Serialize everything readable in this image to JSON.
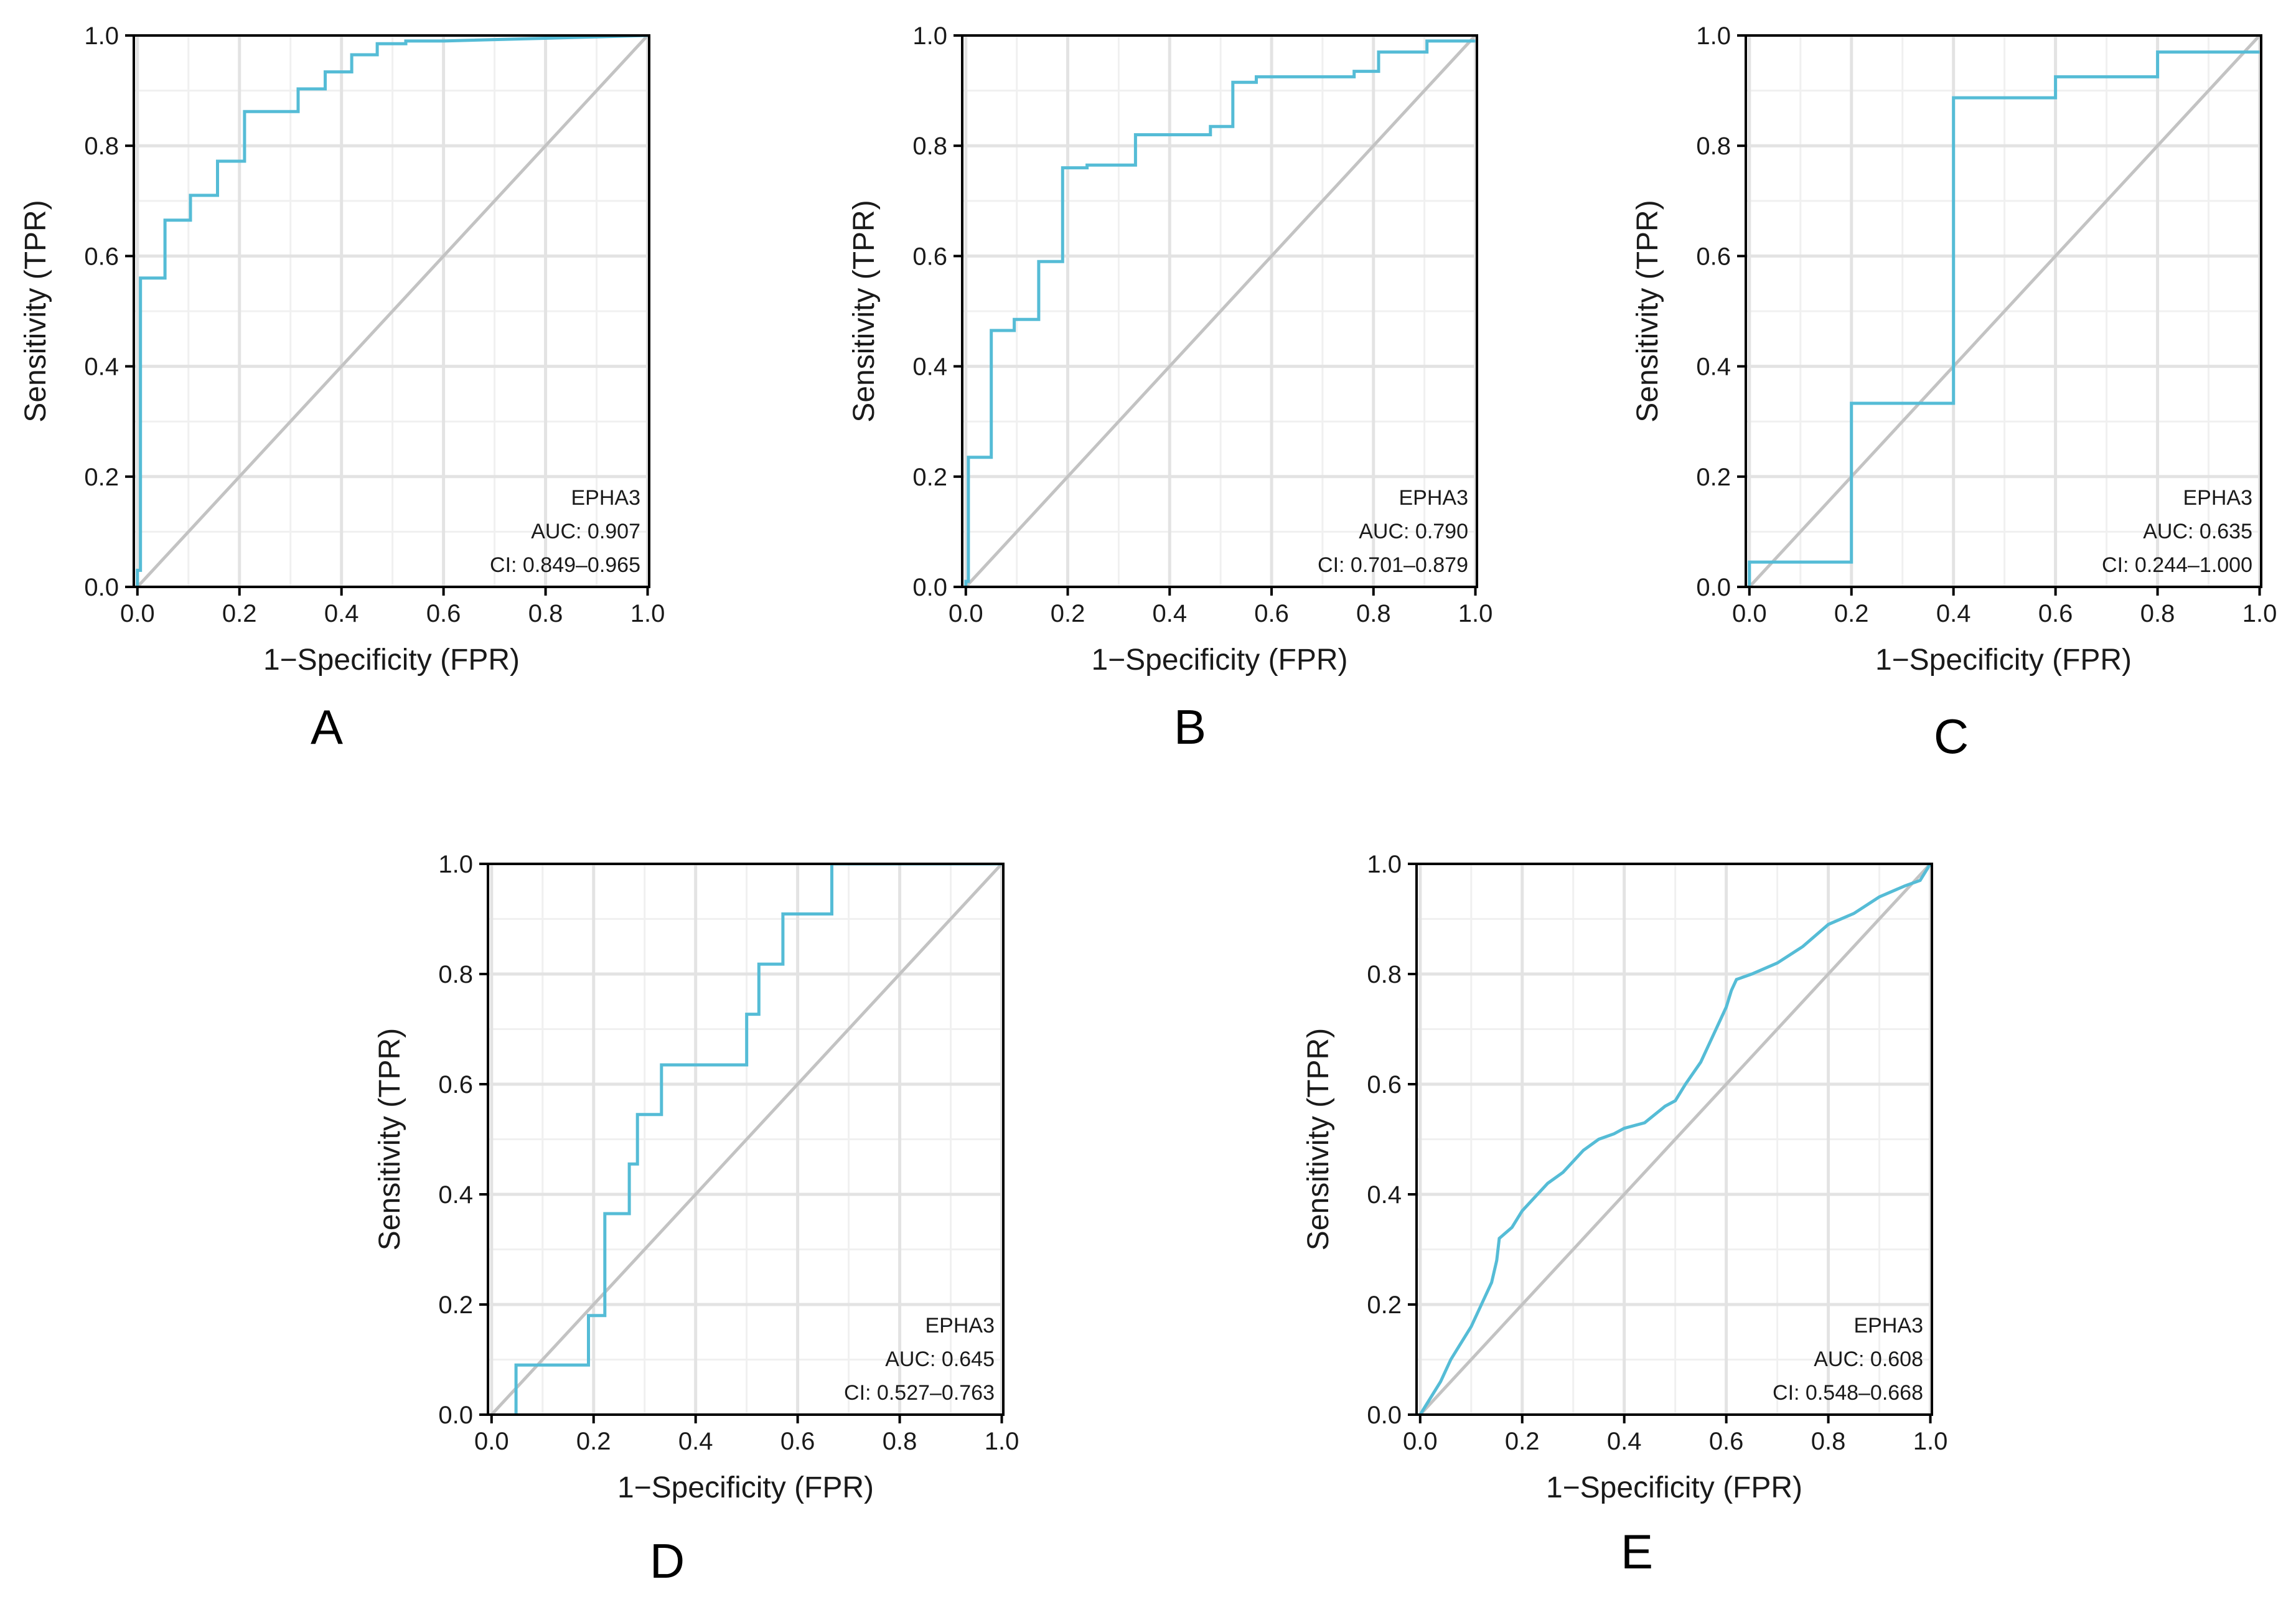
{
  "chart_data": [
    {
      "type": "line",
      "panel_label": "A",
      "xlabel": "1−Specificity (FPR)",
      "ylabel": "Sensitivity (TPR)",
      "xlim": [
        0,
        1
      ],
      "ylim": [
        0,
        1
      ],
      "x_ticks": [
        "0.0",
        "0.2",
        "0.4",
        "0.6",
        "0.8",
        "1.0"
      ],
      "y_ticks": [
        "0.0",
        "0.2",
        "0.4",
        "0.6",
        "0.8",
        "1.0"
      ],
      "grid": true,
      "annotation": [
        "EPHA3",
        "AUC: 0.907",
        "CI: 0.849–0.965"
      ],
      "series": [
        {
          "name": "EPHA3",
          "x": [
            0,
            0,
            0.006,
            0.006,
            0.054,
            0.054,
            0.104,
            0.104,
            0.157,
            0.157,
            0.21,
            0.21,
            0.315,
            0.315,
            0.368,
            0.368,
            0.42,
            0.42,
            0.47,
            0.47,
            0.526,
            0.526,
            0.6,
            1.0
          ],
          "y": [
            0,
            0.03,
            0.03,
            0.56,
            0.56,
            0.665,
            0.665,
            0.71,
            0.71,
            0.772,
            0.772,
            0.862,
            0.862,
            0.903,
            0.903,
            0.934,
            0.934,
            0.965,
            0.965,
            0.985,
            0.985,
            0.99,
            0.99,
            1.0
          ]
        },
        {
          "name": "reference",
          "x": [
            0,
            1
          ],
          "y": [
            0,
            1
          ]
        }
      ]
    },
    {
      "type": "line",
      "panel_label": "B",
      "xlabel": "1−Specificity (FPR)",
      "ylabel": "Sensitivity (TPR)",
      "xlim": [
        0,
        1
      ],
      "ylim": [
        0,
        1
      ],
      "x_ticks": [
        "0.0",
        "0.2",
        "0.4",
        "0.6",
        "0.8",
        "1.0"
      ],
      "y_ticks": [
        "0.0",
        "0.2",
        "0.4",
        "0.6",
        "0.8",
        "1.0"
      ],
      "grid": true,
      "annotation": [
        "EPHA3",
        "AUC: 0.790",
        "CI: 0.701–0.879"
      ],
      "series": [
        {
          "name": "EPHA3",
          "x": [
            0,
            0,
            0.005,
            0.005,
            0.05,
            0.05,
            0.095,
            0.095,
            0.143,
            0.143,
            0.19,
            0.19,
            0.238,
            0.238,
            0.333,
            0.333,
            0.48,
            0.48,
            0.524,
            0.524,
            0.57,
            0.57,
            0.762,
            0.762,
            0.81,
            0.81,
            0.905,
            0.905,
            1.0
          ],
          "y": [
            0,
            0.01,
            0.01,
            0.235,
            0.235,
            0.465,
            0.465,
            0.485,
            0.485,
            0.59,
            0.59,
            0.76,
            0.76,
            0.765,
            0.765,
            0.82,
            0.82,
            0.835,
            0.835,
            0.915,
            0.915,
            0.925,
            0.925,
            0.935,
            0.935,
            0.97,
            0.97,
            0.99,
            0.99
          ]
        },
        {
          "name": "reference",
          "x": [
            0,
            1
          ],
          "y": [
            0,
            1
          ]
        }
      ]
    },
    {
      "type": "line",
      "panel_label": "C",
      "xlabel": "1−Specificity (FPR)",
      "ylabel": "Sensitivity (TPR)",
      "xlim": [
        0,
        1
      ],
      "ylim": [
        0,
        1
      ],
      "x_ticks": [
        "0.0",
        "0.2",
        "0.4",
        "0.6",
        "0.8",
        "1.0"
      ],
      "y_ticks": [
        "0.0",
        "0.2",
        "0.4",
        "0.6",
        "0.8",
        "1.0"
      ],
      "grid": true,
      "annotation": [
        "EPHA3",
        "AUC: 0.635",
        "CI: 0.244–1.000"
      ],
      "series": [
        {
          "name": "EPHA3",
          "x": [
            0,
            0,
            0.2,
            0.2,
            0.4,
            0.4,
            0.6,
            0.6,
            0.8,
            0.8,
            1.0
          ],
          "y": [
            0,
            0.045,
            0.045,
            0.333,
            0.333,
            0.887,
            0.887,
            0.925,
            0.925,
            0.97,
            0.97
          ]
        },
        {
          "name": "reference",
          "x": [
            0,
            1
          ],
          "y": [
            0,
            1
          ]
        }
      ]
    },
    {
      "type": "line",
      "panel_label": "D",
      "xlabel": "1−Specificity (FPR)",
      "ylabel": "Sensitivity (TPR)",
      "xlim": [
        0,
        1
      ],
      "ylim": [
        0,
        1
      ],
      "x_ticks": [
        "0.0",
        "0.2",
        "0.4",
        "0.6",
        "0.8",
        "1.0"
      ],
      "y_ticks": [
        "0.0",
        "0.2",
        "0.4",
        "0.6",
        "0.8",
        "1.0"
      ],
      "grid": true,
      "annotation": [
        "EPHA3",
        "AUC: 0.645",
        "CI: 0.527–0.763"
      ],
      "series": [
        {
          "name": "EPHA3",
          "x": [
            0.048,
            0.048,
            0.19,
            0.19,
            0.222,
            0.222,
            0.27,
            0.27,
            0.286,
            0.286,
            0.333,
            0.333,
            0.5,
            0.5,
            0.524,
            0.524,
            0.571,
            0.571,
            0.667,
            0.667,
            1.0
          ],
          "y": [
            0,
            0.09,
            0.09,
            0.18,
            0.18,
            0.365,
            0.365,
            0.455,
            0.455,
            0.545,
            0.545,
            0.635,
            0.635,
            0.727,
            0.727,
            0.818,
            0.818,
            0.909,
            0.909,
            1.0,
            1.0
          ]
        },
        {
          "name": "reference",
          "x": [
            0,
            1
          ],
          "y": [
            0,
            1
          ]
        }
      ]
    },
    {
      "type": "line",
      "panel_label": "E",
      "xlabel": "1−Specificity (FPR)",
      "ylabel": "Sensitivity (TPR)",
      "xlim": [
        0,
        1
      ],
      "ylim": [
        0,
        1
      ],
      "x_ticks": [
        "0.0",
        "0.2",
        "0.4",
        "0.6",
        "0.8",
        "1.0"
      ],
      "y_ticks": [
        "0.0",
        "0.2",
        "0.4",
        "0.6",
        "0.8",
        "1.0"
      ],
      "grid": true,
      "annotation": [
        "EPHA3",
        "AUC: 0.608",
        "CI: 0.548–0.668"
      ],
      "series": [
        {
          "name": "EPHA3",
          "x": [
            0,
            0.02,
            0.04,
            0.06,
            0.08,
            0.1,
            0.12,
            0.14,
            0.15,
            0.155,
            0.18,
            0.2,
            0.22,
            0.25,
            0.28,
            0.3,
            0.32,
            0.35,
            0.38,
            0.4,
            0.44,
            0.48,
            0.5,
            0.52,
            0.55,
            0.58,
            0.6,
            0.61,
            0.62,
            0.65,
            0.7,
            0.75,
            0.8,
            0.85,
            0.9,
            0.95,
            0.98,
            1.0
          ],
          "y": [
            0,
            0.03,
            0.06,
            0.1,
            0.13,
            0.16,
            0.2,
            0.24,
            0.28,
            0.32,
            0.34,
            0.37,
            0.39,
            0.42,
            0.44,
            0.46,
            0.48,
            0.5,
            0.51,
            0.52,
            0.53,
            0.56,
            0.57,
            0.6,
            0.64,
            0.7,
            0.74,
            0.77,
            0.79,
            0.8,
            0.82,
            0.85,
            0.89,
            0.91,
            0.94,
            0.96,
            0.97,
            1.0
          ]
        },
        {
          "name": "reference",
          "x": [
            0,
            1
          ],
          "y": [
            0,
            1
          ]
        }
      ]
    }
  ]
}
